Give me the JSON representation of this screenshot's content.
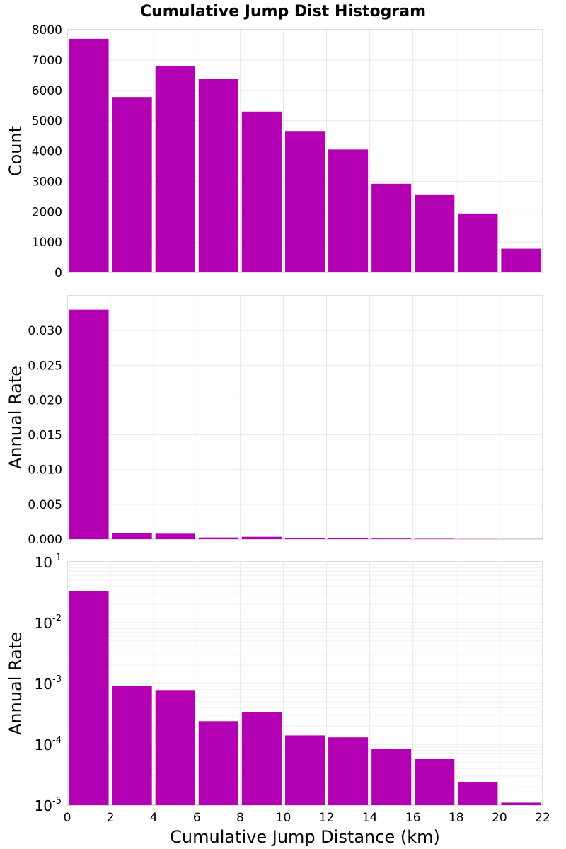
{
  "chart_data": {
    "type": "bar",
    "title": "Cumulative Jump Dist Histogram",
    "xlabel": "Cumulative Jump Distance (km)",
    "xlim": [
      0,
      22
    ],
    "xticks": [
      "0",
      "2",
      "4",
      "6",
      "8",
      "10",
      "12",
      "14",
      "16",
      "18",
      "20",
      "22"
    ],
    "bar_color": "#b200b2",
    "grid": true,
    "bins": [
      {
        "x0": 0,
        "x1": 2
      },
      {
        "x0": 2,
        "x1": 4
      },
      {
        "x0": 4,
        "x1": 6
      },
      {
        "x0": 6,
        "x1": 8
      },
      {
        "x0": 8,
        "x1": 10
      },
      {
        "x0": 10,
        "x1": 12
      },
      {
        "x0": 12,
        "x1": 14
      },
      {
        "x0": 14,
        "x1": 16
      },
      {
        "x0": 16,
        "x1": 18
      },
      {
        "x0": 18,
        "x1": 20
      },
      {
        "x0": 20,
        "x1": 22
      }
    ],
    "panels": [
      {
        "ylabel": "Count",
        "scale": "linear",
        "ylim": [
          0,
          8000
        ],
        "yticks": [
          "0",
          "1000",
          "2000",
          "3000",
          "4000",
          "5000",
          "6000",
          "7000",
          "8000"
        ],
        "values": [
          7700,
          5780,
          6810,
          6380,
          5300,
          4660,
          4050,
          2920,
          2570,
          1940,
          780
        ]
      },
      {
        "ylabel": "Annual Rate",
        "scale": "linear",
        "ylim": [
          0,
          0.035
        ],
        "yticks": [
          "0.000",
          "0.005",
          "0.010",
          "0.015",
          "0.020",
          "0.025",
          "0.030"
        ],
        "values": [
          0.033,
          0.00091,
          0.00078,
          0.00024,
          0.00034,
          0.00014,
          0.00013,
          8.3e-05,
          5.7e-05,
          2.4e-05,
          1.1e-05
        ]
      },
      {
        "ylabel": "Annual Rate",
        "scale": "log",
        "ylim": [
          1e-05,
          0.1
        ],
        "yticks": [
          {
            "base": "10",
            "exp": "-5"
          },
          {
            "base": "10",
            "exp": "-4"
          },
          {
            "base": "10",
            "exp": "-3"
          },
          {
            "base": "10",
            "exp": "-2"
          },
          {
            "base": "10",
            "exp": "-1"
          }
        ],
        "values": [
          0.033,
          0.00091,
          0.00078,
          0.00024,
          0.00034,
          0.00014,
          0.00013,
          8.3e-05,
          5.7e-05,
          2.4e-05,
          1.1e-05
        ]
      }
    ]
  }
}
